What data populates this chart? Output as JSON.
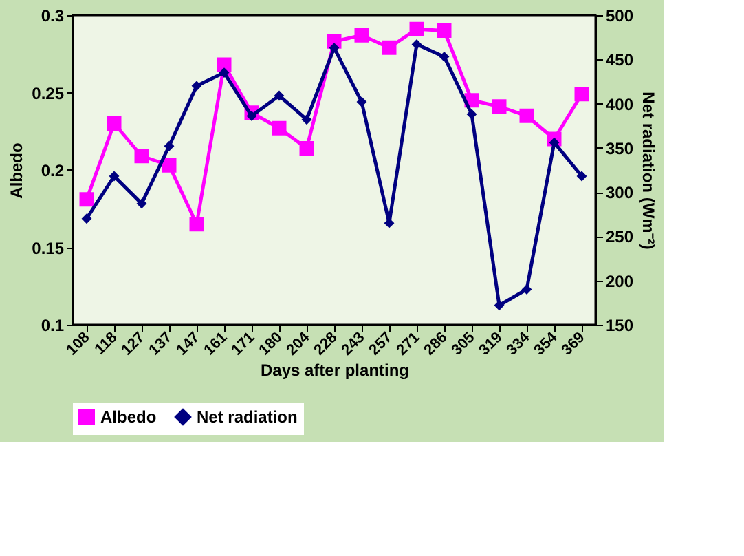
{
  "chart_data": {
    "type": "line",
    "xlabel": "Days after planting",
    "ylabel": "Albedo",
    "y2label": "Net radiation (Wm⁻²)",
    "categories": [
      "108",
      "118",
      "127",
      "137",
      "147",
      "161",
      "171",
      "180",
      "204",
      "228",
      "243",
      "257",
      "271",
      "286",
      "305",
      "319",
      "334",
      "354",
      "369"
    ],
    "series": [
      {
        "name": "Albedo",
        "color": "#ff00ff",
        "marker": "square",
        "values": [
          0.181,
          0.23,
          0.209,
          0.203,
          0.165,
          0.268,
          0.237,
          0.227,
          0.214,
          0.283,
          0.287,
          0.279,
          0.291,
          0.29,
          0.245,
          0.241,
          0.235,
          0.22,
          0.249
        ]
      },
      {
        "name": "Net radiation",
        "color": "#000080",
        "marker": "diamond",
        "axis": "y2",
        "values": [
          270,
          318,
          287,
          352,
          420,
          435,
          386,
          409,
          382,
          463,
          402,
          265,
          467,
          453,
          388,
          172,
          190,
          356,
          318
        ]
      }
    ],
    "ylim": [
      0.1,
      0.3
    ],
    "yticks": [
      0.1,
      0.15,
      0.2,
      0.25,
      0.3
    ],
    "y2lim": [
      150,
      500
    ],
    "y2ticks": [
      150,
      200,
      250,
      300,
      350,
      400,
      450,
      500
    ],
    "grid": false,
    "legend": "bottom"
  }
}
